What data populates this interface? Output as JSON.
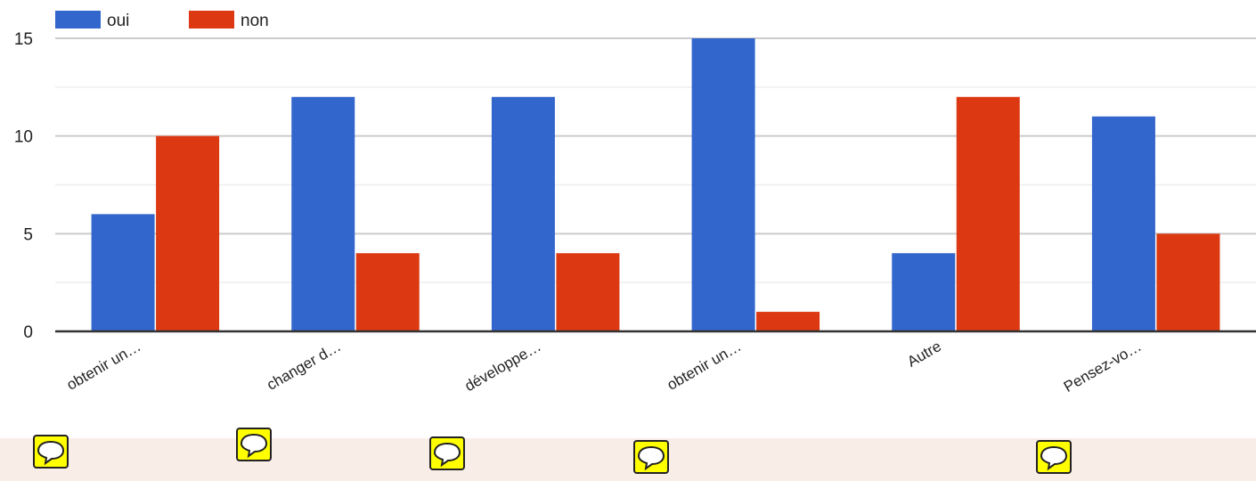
{
  "chart_data": {
    "type": "bar",
    "categories": [
      "obtenir un…",
      "changer d…",
      "développe…",
      "obtenir un…",
      "Autre",
      "Pensez-vo…"
    ],
    "series": [
      {
        "name": "oui",
        "color": "#3366cc",
        "values": [
          6,
          12,
          12,
          15,
          4,
          11
        ]
      },
      {
        "name": "non",
        "color": "#dc3912",
        "values": [
          10,
          4,
          4,
          1,
          12,
          5
        ]
      }
    ],
    "ylim": [
      0,
      15
    ],
    "yticks": [
      0,
      5,
      10,
      15
    ],
    "grid": true,
    "legend": "top-left"
  },
  "annotations": {
    "icon": "comment-icon",
    "count": 5,
    "color": "#ffff00"
  }
}
